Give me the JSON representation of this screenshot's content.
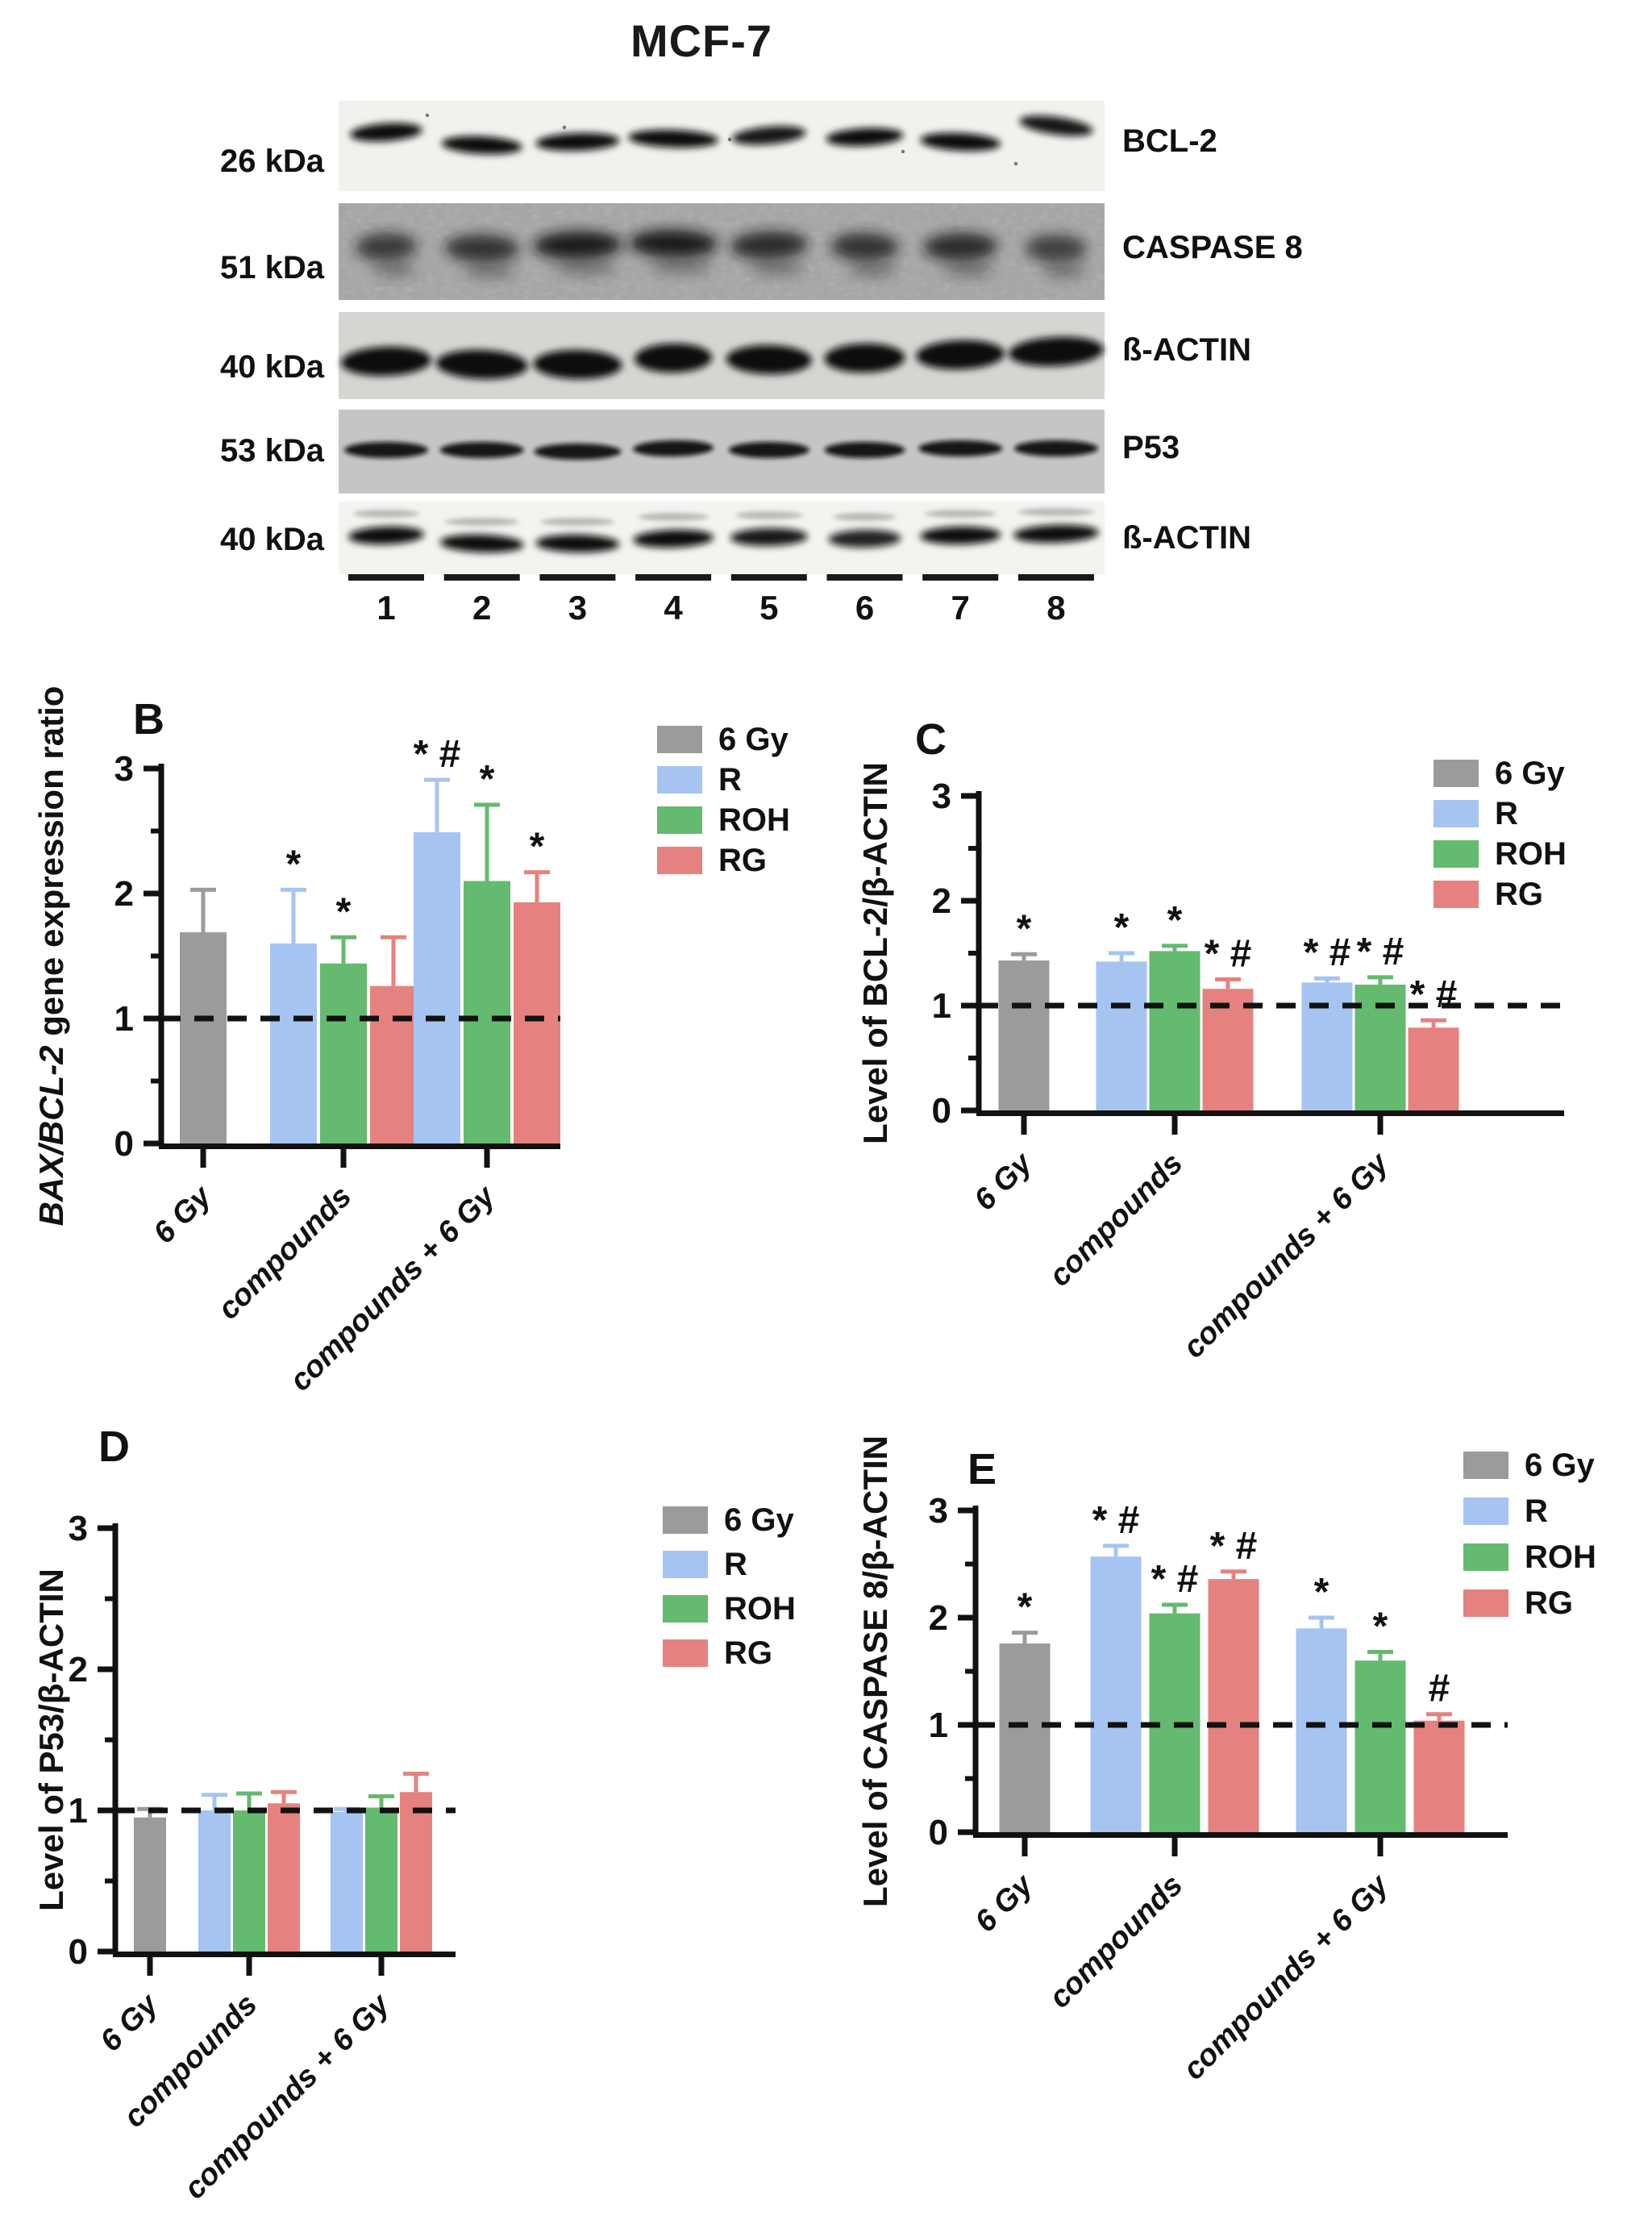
{
  "figure_title": "MCF-7",
  "colors": {
    "6 Gy": "#9B9B9D",
    "R": "#A5C4F1",
    "ROH": "#64BA6F",
    "RG": "#E5827F"
  },
  "blot": {
    "cell_line_title": "MCF-7",
    "rows": [
      {
        "mw_label": "26 kDa",
        "protein_label": "BCL-2"
      },
      {
        "mw_label": "51 kDa",
        "protein_label": "CASPASE 8"
      },
      {
        "mw_label": "40 kDa",
        "protein_label": "ß-ACTIN"
      },
      {
        "mw_label": "53 kDa",
        "protein_label": "P53"
      },
      {
        "mw_label": "40 kDa",
        "protein_label": "ß-ACTIN"
      }
    ],
    "lane_labels": [
      "1",
      "2",
      "3",
      "4",
      "5",
      "6",
      "7",
      "8"
    ]
  },
  "chart_data": [
    {
      "panel": "B",
      "type": "bar",
      "ylabel": "BAX/BCL-2 gene expression ratio",
      "ylabel_italic_prefix": "BAX/BCL-2",
      "ylim": [
        0,
        3
      ],
      "yticks": [
        0,
        1,
        2,
        3
      ],
      "minor_tick_step": 0.5,
      "reference_line_y": 1,
      "grid": false,
      "legend_position": "top-right",
      "legend": [
        "6 Gy",
        "R",
        "ROH",
        "RG"
      ],
      "categories": [
        "6 Gy",
        "compounds",
        "compounds + 6 Gy"
      ],
      "bars": [
        {
          "category": "6 Gy",
          "series": "6 Gy",
          "value": 1.69,
          "error": 0.34,
          "sig": ""
        },
        {
          "category": "compounds",
          "series": "R",
          "value": 1.6,
          "error": 0.43,
          "sig": "*"
        },
        {
          "category": "compounds",
          "series": "ROH",
          "value": 1.44,
          "error": 0.21,
          "sig": "*"
        },
        {
          "category": "compounds",
          "series": "RG",
          "value": 1.26,
          "error": 0.39,
          "sig": ""
        },
        {
          "category": "compounds + 6 Gy",
          "series": "R",
          "value": 2.49,
          "error": 0.42,
          "sig": "* #"
        },
        {
          "category": "compounds + 6 Gy",
          "series": "ROH",
          "value": 2.1,
          "error": 0.61,
          "sig": "*"
        },
        {
          "category": "compounds + 6 Gy",
          "series": "RG",
          "value": 1.93,
          "error": 0.24,
          "sig": "*"
        }
      ]
    },
    {
      "panel": "C",
      "type": "bar",
      "ylabel": "Level of BCL-2/β-ACTIN",
      "ylabel_italic_prefix": "",
      "ylim": [
        0,
        3
      ],
      "yticks": [
        0,
        1,
        2,
        3
      ],
      "minor_tick_step": 0.5,
      "reference_line_y": 1,
      "grid": false,
      "legend_position": "top-right",
      "legend": [
        "6 Gy",
        "R",
        "ROH",
        "RG"
      ],
      "categories": [
        "6 Gy",
        "compounds",
        "compounds + 6 Gy"
      ],
      "bars": [
        {
          "category": "6 Gy",
          "series": "6 Gy",
          "value": 1.43,
          "error": 0.06,
          "sig": "*"
        },
        {
          "category": "compounds",
          "series": "R",
          "value": 1.42,
          "error": 0.08,
          "sig": "*"
        },
        {
          "category": "compounds",
          "series": "ROH",
          "value": 1.52,
          "error": 0.05,
          "sig": "*"
        },
        {
          "category": "compounds",
          "series": "RG",
          "value": 1.16,
          "error": 0.09,
          "sig": "* #"
        },
        {
          "category": "compounds + 6 Gy",
          "series": "R",
          "value": 1.22,
          "error": 0.04,
          "sig": "* #"
        },
        {
          "category": "compounds + 6 Gy",
          "series": "ROH",
          "value": 1.2,
          "error": 0.07,
          "sig": "* #"
        },
        {
          "category": "compounds + 6 Gy",
          "series": "RG",
          "value": 0.79,
          "error": 0.07,
          "sig": "* #"
        }
      ]
    },
    {
      "panel": "D",
      "type": "bar",
      "ylabel": "Level of P53/β-ACTIN",
      "ylabel_italic_prefix": "",
      "ylim": [
        0,
        3
      ],
      "yticks": [
        0,
        1,
        2,
        3
      ],
      "minor_tick_step": 0.5,
      "reference_line_y": 1,
      "grid": false,
      "legend_position": "top-right",
      "legend": [
        "6 Gy",
        "R",
        "ROH",
        "RG"
      ],
      "categories": [
        "6 Gy",
        "compounds",
        "compounds + 6 Gy"
      ],
      "bars": [
        {
          "category": "6 Gy",
          "series": "6 Gy",
          "value": 0.95,
          "error": 0.06,
          "sig": ""
        },
        {
          "category": "compounds",
          "series": "R",
          "value": 1.0,
          "error": 0.11,
          "sig": ""
        },
        {
          "category": "compounds",
          "series": "ROH",
          "value": 1.0,
          "error": 0.12,
          "sig": ""
        },
        {
          "category": "compounds",
          "series": "RG",
          "value": 1.05,
          "error": 0.08,
          "sig": ""
        },
        {
          "category": "compounds + 6 Gy",
          "series": "R",
          "value": 0.99,
          "error": 0.02,
          "sig": ""
        },
        {
          "category": "compounds + 6 Gy",
          "series": "ROH",
          "value": 1.02,
          "error": 0.08,
          "sig": ""
        },
        {
          "category": "compounds + 6 Gy",
          "series": "RG",
          "value": 1.13,
          "error": 0.13,
          "sig": ""
        }
      ]
    },
    {
      "panel": "E",
      "type": "bar",
      "ylabel": "Level of CASPASE 8/β-ACTIN",
      "ylabel_italic_prefix": "",
      "ylim": [
        0,
        3
      ],
      "yticks": [
        0,
        1,
        2,
        3
      ],
      "minor_tick_step": 0.5,
      "reference_line_y": 1,
      "grid": false,
      "legend_position": "top-right",
      "legend": [
        "6 Gy",
        "R",
        "ROH",
        "RG"
      ],
      "categories": [
        "6 Gy",
        "compounds",
        "compounds + 6 Gy"
      ],
      "bars": [
        {
          "category": "6 Gy",
          "series": "6 Gy",
          "value": 1.76,
          "error": 0.1,
          "sig": "*"
        },
        {
          "category": "compounds",
          "series": "R",
          "value": 2.57,
          "error": 0.1,
          "sig": "* #"
        },
        {
          "category": "compounds",
          "series": "ROH",
          "value": 2.04,
          "error": 0.08,
          "sig": "* #"
        },
        {
          "category": "compounds",
          "series": "RG",
          "value": 2.36,
          "error": 0.07,
          "sig": "* #"
        },
        {
          "category": "compounds + 6 Gy",
          "series": "R",
          "value": 1.9,
          "error": 0.1,
          "sig": "*"
        },
        {
          "category": "compounds + 6 Gy",
          "series": "ROH",
          "value": 1.6,
          "error": 0.08,
          "sig": "*"
        },
        {
          "category": "compounds + 6 Gy",
          "series": "RG",
          "value": 1.04,
          "error": 0.06,
          "sig": "#"
        }
      ]
    }
  ]
}
